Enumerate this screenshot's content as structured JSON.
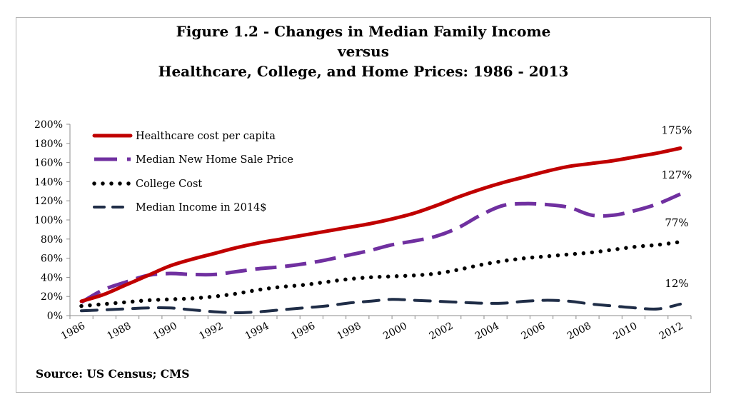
{
  "title": {
    "line1": "Figure 1.2 - Changes in Median Family Income",
    "line2": "versus",
    "line3": "Healthcare, College, and Home Prices: 1986 - 2013"
  },
  "source": "Source:  US Census; CMS",
  "chart_data": {
    "type": "line",
    "title": "Figure 1.2 - Changes in Median Family Income versus Healthcare, College, and Home Prices: 1986 - 2013",
    "x": [
      1986,
      1987,
      1988,
      1989,
      1990,
      1991,
      1992,
      1993,
      1994,
      1995,
      1996,
      1997,
      1998,
      1999,
      2000,
      2001,
      2002,
      2003,
      2004,
      2005,
      2006,
      2007,
      2008,
      2009,
      2010,
      2011,
      2012,
      2013
    ],
    "xlim": [
      1986,
      2013
    ],
    "xticks": [
      "1986",
      "1988",
      "1990",
      "1992",
      "1994",
      "1996",
      "1998",
      "2000",
      "2002",
      "2004",
      "2006",
      "2008",
      "2010",
      "2012"
    ],
    "ylim": [
      0,
      200
    ],
    "yticks": [
      "0%",
      "20%",
      "40%",
      "60%",
      "80%",
      "100%",
      "120%",
      "140%",
      "160%",
      "180%",
      "200%"
    ],
    "y_unit": "%",
    "grid": false,
    "legend_position": "top-left",
    "series": [
      {
        "name": "Healthcare cost per capita",
        "color": "#c00000",
        "style": "solid",
        "end_label": "175%",
        "values": [
          15,
          22,
          32,
          42,
          52,
          59,
          65,
          71,
          76,
          80,
          84,
          88,
          92,
          96,
          101,
          107,
          115,
          124,
          132,
          139,
          145,
          151,
          156,
          159,
          162,
          166,
          170,
          175
        ]
      },
      {
        "name": "Median New Home Sale Price",
        "color": "#7030a0",
        "style": "dashed",
        "end_label": "127%",
        "values": [
          14,
          27,
          35,
          42,
          44,
          43,
          43,
          46,
          49,
          51,
          54,
          58,
          63,
          68,
          74,
          78,
          83,
          92,
          105,
          115,
          117,
          116,
          113,
          105,
          105,
          110,
          117,
          127
        ]
      },
      {
        "name": "College Cost",
        "color": "#000000",
        "style": "dotted",
        "end_label": "77%",
        "values": [
          10,
          12,
          14,
          16,
          17,
          18,
          20,
          23,
          27,
          30,
          32,
          35,
          38,
          40,
          41,
          42,
          44,
          48,
          53,
          57,
          60,
          62,
          64,
          66,
          69,
          72,
          74,
          77
        ]
      },
      {
        "name": "Median Income in 2014$",
        "color": "#1f2d47",
        "style": "longdash",
        "end_label": "12%",
        "values": [
          5,
          6,
          7,
          8,
          8,
          6,
          4,
          3,
          4,
          6,
          8,
          10,
          13,
          15,
          17,
          16,
          15,
          14,
          13,
          13,
          15,
          16,
          15,
          12,
          10,
          8,
          7,
          12
        ]
      }
    ]
  }
}
